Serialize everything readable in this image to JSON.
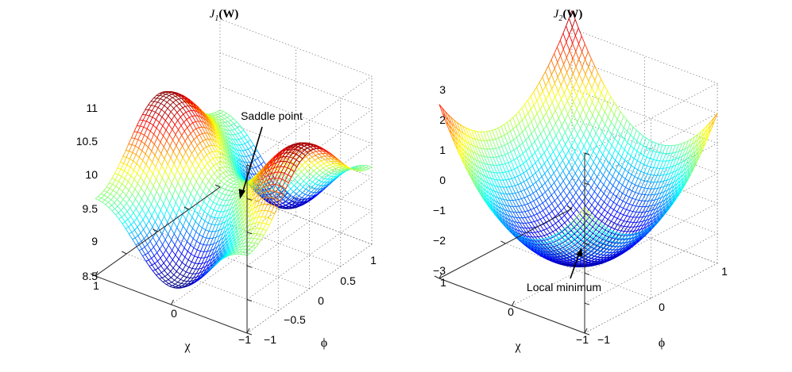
{
  "chart_data": [
    {
      "type": "surface",
      "title": "J_1(W)",
      "title_main": "J",
      "title_sub": "1",
      "title_arg": "(W)",
      "xlabel": "χ",
      "ylabel": "ϕ",
      "zlabel": "",
      "xlim": [
        -1,
        1
      ],
      "ylim": [
        -1,
        1
      ],
      "zlim": [
        8.5,
        11
      ],
      "x_ticks": [
        "1",
        "0",
        "−1"
      ],
      "y_ticks": [
        "−1",
        "−0.5",
        "0",
        "0.5",
        "1"
      ],
      "z_ticks": [
        "8.5",
        "9",
        "9.5",
        "10",
        "10.5",
        "11"
      ],
      "z_tick_values": [
        8.5,
        9,
        9.5,
        10,
        10.5,
        11
      ],
      "colormap": "jet",
      "surface_formula": "z = 9.65 + 1.2*(sin(πχ/2)^2 - sin(πϕ/2)^2)*exp(-0.3*(χ^2+ϕ^2))",
      "grid_resolution": 45,
      "annotation": {
        "text": "Saddle point",
        "target": {
          "x": 0,
          "y": 0,
          "z": 9.65
        }
      }
    },
    {
      "type": "surface",
      "title": "J_2(W)",
      "title_main": "J",
      "title_sub": "2",
      "title_arg": "(W)",
      "xlabel": "χ",
      "ylabel": "ϕ",
      "zlabel": "",
      "xlim": [
        -1,
        1
      ],
      "ylim": [
        -1,
        1
      ],
      "zlim": [
        -3,
        3
      ],
      "x_ticks": [
        "1",
        "0",
        "−1"
      ],
      "y_ticks": [
        "−1",
        "0",
        "1"
      ],
      "z_ticks": [
        "−3",
        "−2",
        "−1",
        "0",
        "1",
        "2",
        "3"
      ],
      "z_tick_values": [
        -3,
        -2,
        -1,
        0,
        1,
        2,
        3
      ],
      "colormap": "jet",
      "surface_formula": "z = -2.3 + 2.5χ^2 + 2.2ϕ^2 + 0.8χ + 0.4ϕ",
      "grid_resolution": 45,
      "annotation": {
        "text": "Local minimum",
        "target": {
          "x": 0,
          "y": 0,
          "z": -2.3
        }
      }
    }
  ]
}
